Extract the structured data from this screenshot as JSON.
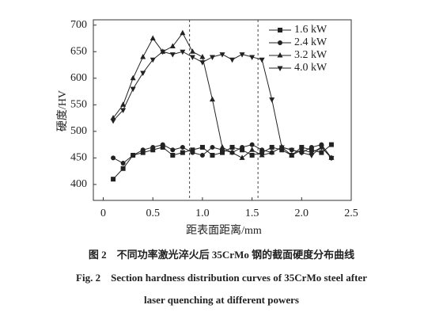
{
  "chart_data": {
    "type": "line",
    "x_label": "距表面距离/mm",
    "y_label": "硬度/HV",
    "x": [
      0.1,
      0.2,
      0.3,
      0.4,
      0.5,
      0.6,
      0.7,
      0.8,
      0.9,
      1.0,
      1.1,
      1.2,
      1.3,
      1.4,
      1.5,
      1.6,
      1.7,
      1.8,
      1.9,
      2.0,
      2.1,
      2.2,
      2.3
    ],
    "series": [
      {
        "name": "1.6 kW",
        "color": "#222222",
        "marker": "square",
        "values": [
          410,
          430,
          455,
          460,
          465,
          470,
          455,
          460,
          465,
          470,
          455,
          460,
          470,
          465,
          455,
          460,
          470,
          465,
          455,
          470,
          465,
          460,
          475
        ]
      },
      {
        "name": "2.4 kW",
        "color": "#222222",
        "marker": "circle",
        "values": [
          450,
          440,
          455,
          465,
          470,
          475,
          465,
          470,
          460,
          455,
          470,
          465,
          460,
          470,
          475,
          465,
          460,
          470,
          465,
          460,
          470,
          475,
          450
        ]
      },
      {
        "name": "3.2 kW",
        "color": "#222222",
        "marker": "triangle-up",
        "values": [
          525,
          550,
          600,
          640,
          675,
          650,
          660,
          685,
          650,
          640,
          560,
          470,
          460,
          450,
          465,
          455,
          460,
          470,
          455,
          465,
          460,
          470,
          450
        ]
      },
      {
        "name": "4.0 kW",
        "color": "#222222",
        "marker": "triangle-down",
        "values": [
          520,
          540,
          580,
          610,
          635,
          650,
          645,
          650,
          640,
          630,
          640,
          645,
          635,
          645,
          640,
          635,
          560,
          470,
          465,
          460,
          455,
          470,
          450
        ]
      }
    ],
    "xlim": [
      -0.1,
      2.5
    ],
    "xticks": [
      0,
      0.5,
      {
        "value": 1,
        "label": "1.0"
      },
      1.5,
      {
        "value": 2,
        "label": "2.0"
      },
      2.5
    ],
    "ylim": [
      370,
      710
    ],
    "yticks": [
      400,
      450,
      500,
      550,
      600,
      650,
      700
    ],
    "vlines": [
      0.87,
      1.56
    ],
    "legend": "upper-right",
    "caption_cn": "图 2　不同功率激光淬火后 35CrMo 钢的截面硬度分布曲线",
    "caption_en_1": "Fig. 2　Section hardness distribution curves of 35CrMo steel after",
    "caption_en_2": "laser quenching at different powers"
  }
}
